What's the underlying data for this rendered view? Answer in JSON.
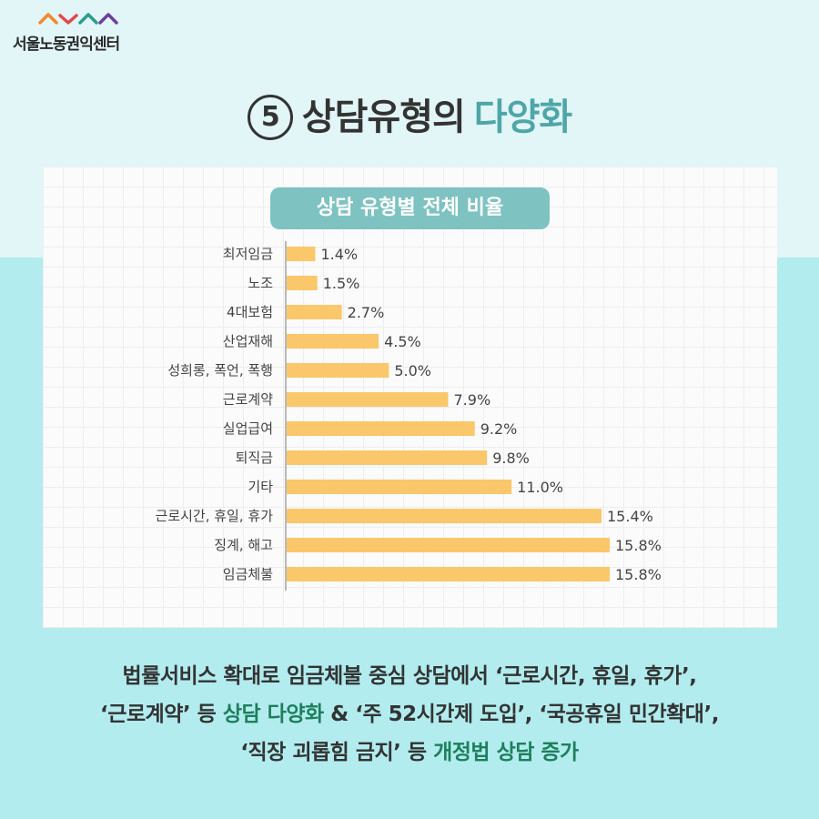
{
  "brand": {
    "name": "서울노동권익센터",
    "mark_colors": [
      "#f08a2c",
      "#e2474b",
      "#2a9d8f",
      "#6a3fa0"
    ]
  },
  "title": {
    "number": "5",
    "main": "상담유형의",
    "accent": "다양화",
    "accent_color": "#4fa6a8"
  },
  "chart_data": {
    "type": "bar",
    "orientation": "horizontal",
    "title": "상담 유형별 전체 비율",
    "categories": [
      "최저임금",
      "노조",
      "4대보험",
      "산업재해",
      "성희롱, 폭언, 폭행",
      "근로계약",
      "실업급여",
      "퇴직금",
      "기타",
      "근로시간, 휴일, 휴가",
      "징계, 해고",
      "임금체불"
    ],
    "values": [
      1.4,
      1.5,
      2.7,
      4.5,
      5.0,
      7.9,
      9.2,
      9.8,
      11.0,
      15.4,
      15.8,
      15.8
    ],
    "value_labels": [
      "1.4%",
      "1.5%",
      "2.7%",
      "4.5%",
      "5.0%",
      "7.9%",
      "9.2%",
      "9.8%",
      "11.0%",
      "15.4%",
      "15.8%",
      "15.8%"
    ],
    "unit": "%",
    "bar_color": "#fbc76b",
    "xlim": [
      0,
      16
    ],
    "grid": true,
    "legend": "none"
  },
  "footer": {
    "line1": "법률서비스 확대로 임금체불 중심 상담에서 ‘근로시간, 휴일, 휴가’,",
    "line2_a": "‘근로계약’ 등 ",
    "line2_hl": "상담 다양화",
    "line2_b": " & ‘주 52시간제 도입’, ‘국공휴일 민간확대’,",
    "line3_a": "‘직장 괴롭힘 금지’ 등 ",
    "line3_hl": "개정법 상담 증가",
    "highlight_color": "#1e7f5c"
  }
}
